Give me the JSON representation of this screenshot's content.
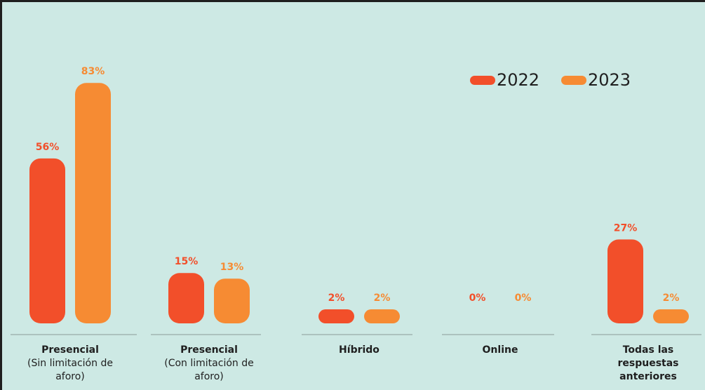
{
  "chart_data": {
    "type": "bar",
    "categories": [
      {
        "name": [
          "Presencial"
        ],
        "note": [
          "(Sin limitación de",
          "aforo)"
        ]
      },
      {
        "name": [
          "Presencial"
        ],
        "note": [
          "(Con limitación de",
          "aforo)"
        ]
      },
      {
        "name": [
          "Híbrido"
        ]
      },
      {
        "name": [
          "Online"
        ]
      },
      {
        "name": [
          "Todas las",
          "respuestas",
          "anteriores"
        ]
      }
    ],
    "series": [
      {
        "name": "2022",
        "color": "#f24f2a",
        "values": [
          56,
          15,
          2,
          0,
          27
        ],
        "value_labels": [
          "56%",
          "15%",
          "2%",
          "0%",
          "27%"
        ]
      },
      {
        "name": "2023",
        "color": "#f68b33",
        "values": [
          83,
          13,
          2,
          0,
          2
        ],
        "value_labels": [
          "83%",
          "13%",
          "2%",
          "0%",
          "2%"
        ]
      }
    ],
    "legend": "top-right"
  }
}
